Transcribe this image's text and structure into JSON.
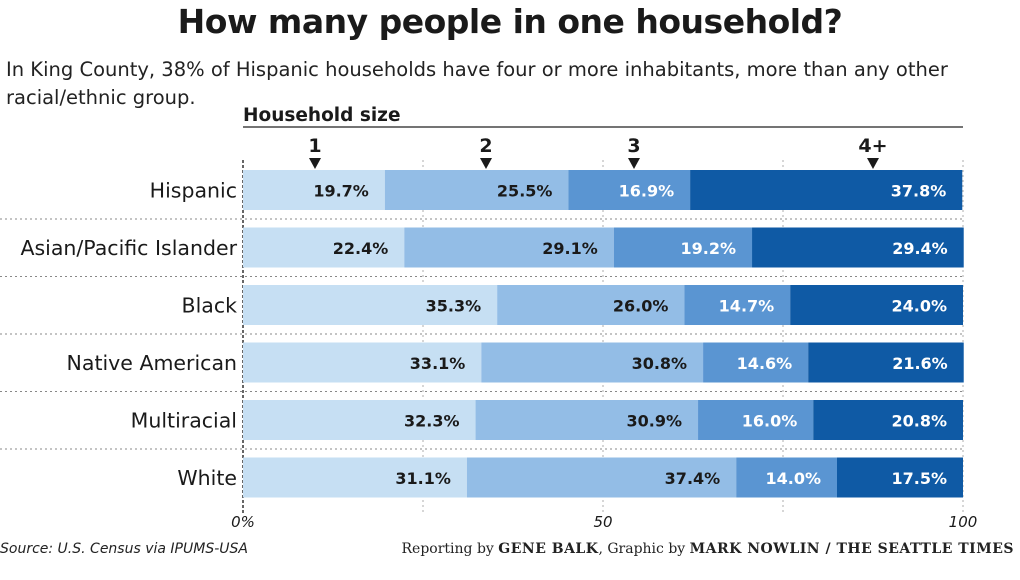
{
  "header": {
    "title": "How many people in one household?",
    "subtitle": "In King County, 38% of Hispanic households have four or more inhabitants, more than any other racial/ethnic group."
  },
  "footer": {
    "source": "Source: U.S. Census via IPUMS-USA",
    "credit_prefix_1": "Reporting by ",
    "credit_name_1": "GENE BALK",
    "credit_prefix_2": ", Graphic by ",
    "credit_name_2": "MARK NOWLIN / THE SEATTLE TIMES"
  },
  "chart_data": {
    "type": "bar",
    "orientation": "horizontal",
    "stacked": true,
    "legend_title": "Household size",
    "xlim": [
      0,
      100
    ],
    "x_ticks": [
      "0%",
      "50",
      "100"
    ],
    "x_tick_values": [
      0,
      50,
      100
    ],
    "categories": [
      "Hispanic",
      "Asian/Pacific Islander",
      "Black",
      "Native American",
      "Multiracial",
      "White"
    ],
    "series": [
      {
        "name": "1",
        "color": "#c6dff3",
        "values": [
          19.7,
          22.4,
          35.3,
          33.1,
          32.3,
          31.1
        ]
      },
      {
        "name": "2",
        "color": "#93bde6",
        "values": [
          25.5,
          29.1,
          26.0,
          30.8,
          30.9,
          37.4
        ]
      },
      {
        "name": "3",
        "color": "#5a95d2",
        "values": [
          16.9,
          19.2,
          14.7,
          14.6,
          16.0,
          14.0
        ]
      },
      {
        "name": "4+",
        "color": "#0f5aa5",
        "values": [
          37.8,
          29.4,
          24.0,
          21.6,
          20.8,
          17.5
        ]
      }
    ],
    "data_labels": [
      [
        "19.7%",
        "25.5%",
        "16.9%",
        "37.8%"
      ],
      [
        "22.4%",
        "29.1%",
        "19.2%",
        "29.4%"
      ],
      [
        "35.3%",
        "26.0%",
        "14.7%",
        "24.0%"
      ],
      [
        "33.1%",
        "30.8%",
        "14.6%",
        "21.6%"
      ],
      [
        "32.3%",
        "30.9%",
        "16.0%",
        "20.8%"
      ],
      [
        "31.1%",
        "37.4%",
        "14.0%",
        "17.5%"
      ]
    ],
    "grid": true
  }
}
